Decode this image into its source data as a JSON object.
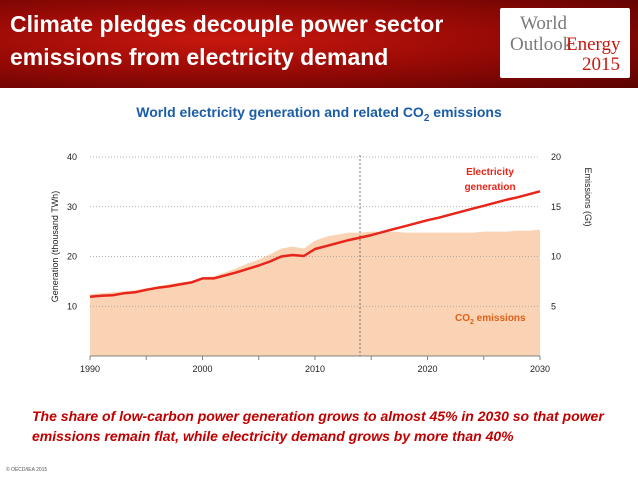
{
  "header": {
    "title": "Climate pledges decouple power sector emissions from electricity demand",
    "logo": {
      "line1": "World",
      "line2": "Outlook",
      "line2b": "Energy",
      "line3": "2015"
    }
  },
  "chart_title": {
    "text": "World electricity generation and related CO",
    "sub": "2",
    "suffix": " emissions"
  },
  "chart_data": {
    "type": "area",
    "title": "World electricity generation and related CO2 emissions",
    "x": [
      1990,
      1991,
      1992,
      1993,
      1994,
      1995,
      1996,
      1997,
      1998,
      1999,
      2000,
      2001,
      2002,
      2003,
      2004,
      2005,
      2006,
      2007,
      2008,
      2009,
      2010,
      2011,
      2012,
      2013,
      2014,
      2015,
      2016,
      2017,
      2018,
      2019,
      2020,
      2021,
      2022,
      2023,
      2024,
      2025,
      2026,
      2027,
      2028,
      2029,
      2030
    ],
    "xticks": [
      1990,
      2000,
      2010,
      2020,
      2030
    ],
    "xlim": [
      1990,
      2030
    ],
    "series": [
      {
        "name": "Electricity generation",
        "axis": "left",
        "style": "line",
        "color": "#e8251b",
        "values": [
          11.9,
          12.1,
          12.2,
          12.6,
          12.8,
          13.3,
          13.7,
          14.0,
          14.4,
          14.8,
          15.6,
          15.6,
          16.2,
          16.8,
          17.5,
          18.2,
          19.0,
          20.0,
          20.3,
          20.1,
          21.5,
          22.1,
          22.7,
          23.3,
          23.8,
          24.3,
          24.9,
          25.5,
          26.1,
          26.7,
          27.3,
          27.8,
          28.4,
          29.0,
          29.6,
          30.2,
          30.8,
          31.4,
          31.9,
          32.5,
          33.1
        ]
      },
      {
        "name": "CO2 emissions",
        "axis": "right",
        "style": "area",
        "color": "#f9d3b4",
        "values": [
          6.2,
          6.3,
          6.4,
          6.5,
          6.6,
          6.8,
          7.0,
          7.2,
          7.4,
          7.5,
          7.9,
          8.0,
          8.4,
          8.8,
          9.3,
          9.7,
          10.2,
          10.8,
          11.0,
          10.8,
          11.6,
          12.0,
          12.2,
          12.4,
          12.4,
          12.5,
          12.5,
          12.5,
          12.4,
          12.4,
          12.4,
          12.4,
          12.4,
          12.4,
          12.4,
          12.5,
          12.5,
          12.5,
          12.6,
          12.6,
          12.7
        ]
      }
    ],
    "y_left": {
      "label": "Generation (thousand TWh)",
      "ticks": [
        10,
        20,
        30,
        40
      ],
      "lim": [
        0,
        40
      ]
    },
    "y_right": {
      "label": "Emissions (Gt)",
      "ticks": [
        5,
        10,
        15,
        20
      ],
      "lim": [
        0,
        20
      ]
    },
    "divider_year": 2014,
    "annotations": {
      "electricity_line1": "Electricity",
      "electricity_line2": "generation",
      "co2_text": "CO",
      "co2_sub": "2",
      "co2_suffix": " emissions"
    },
    "grid": true
  },
  "caption": "The share of low-carbon power generation grows to almost 45% in 2030 so that power emissions remain flat, while electricity demand grows by more than 40%",
  "copyright": "© OECD/IEA 2015"
}
